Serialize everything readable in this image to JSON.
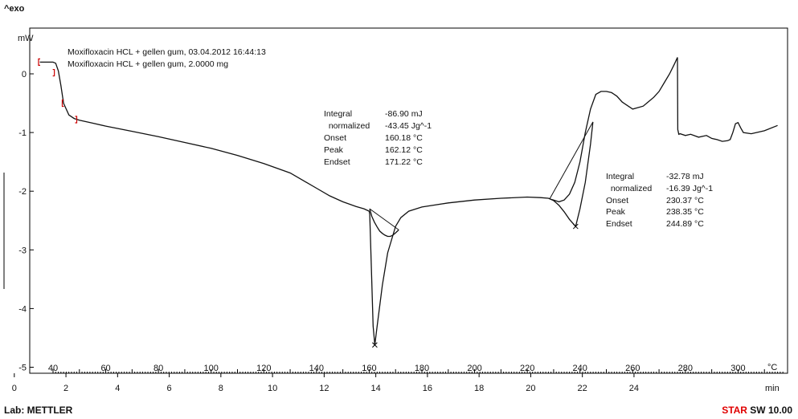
{
  "header": {
    "exo": "^exo"
  },
  "footer": {
    "lab": "Lab: METTLER",
    "star_red": "STAR",
    "star_rest": " SW 10.00"
  },
  "legend": [
    "Moxifloxacin HCL + gellen gum, 03.04.2012 16:44:13",
    "Moxifloxacin HCL + gellen gum, 2.0000 mg"
  ],
  "annotations": [
    {
      "rows": [
        {
          "label": "Integral",
          "value": "-86.90 mJ"
        },
        {
          "label": "  normalized",
          "value": "-43.45 Jg^-1"
        },
        {
          "label": "Onset",
          "value": "160.18 °C"
        },
        {
          "label": "Peak",
          "value": "162.12 °C"
        },
        {
          "label": "Endset",
          "value": "171.22 °C"
        }
      ]
    },
    {
      "rows": [
        {
          "label": "Integral",
          "value": "-32.78 mJ"
        },
        {
          "label": "  normalized",
          "value": "-16.39 Jg^-1"
        },
        {
          "label": "Onset",
          "value": "230.37 °C"
        },
        {
          "label": "Peak",
          "value": "238.35 °C"
        },
        {
          "label": "Endset",
          "value": "244.89 °C"
        }
      ]
    }
  ],
  "chart_data": {
    "type": "line",
    "title": "",
    "ylabel": "mW",
    "ylim": [
      -5,
      0.7
    ],
    "y_ticks": [
      0,
      -1,
      -2,
      -3,
      -4,
      -5
    ],
    "temp_unit": "°C",
    "temp_ticks": [
      40,
      60,
      80,
      100,
      120,
      140,
      160,
      180,
      200,
      220,
      240,
      260,
      280,
      300
    ],
    "time_unit": "min",
    "time_ticks": [
      0,
      2,
      4,
      6,
      8,
      10,
      12,
      14,
      16,
      18,
      20,
      22,
      24
    ],
    "series": [
      {
        "x": [
          35,
          36,
          38,
          40,
          41,
          42,
          43,
          44,
          46,
          48,
          50,
          55,
          60,
          70,
          80,
          90,
          100,
          110,
          120,
          130,
          140,
          145,
          150,
          155,
          158,
          160,
          160.2,
          160.8,
          161.5,
          162.12,
          163,
          165,
          167,
          170,
          172,
          175,
          180,
          190,
          200,
          210,
          220,
          225,
          228,
          229,
          230,
          232,
          234,
          236,
          238,
          240,
          242,
          244,
          246,
          248,
          250,
          252,
          254,
          256,
          260,
          264,
          268,
          270,
          272,
          274,
          276,
          277,
          277.1,
          277.5,
          278,
          280,
          282,
          285,
          288,
          290,
          292,
          294,
          296,
          297,
          298,
          299,
          300,
          301,
          302,
          305,
          310,
          315
        ],
        "y": [
          0.2,
          0.2,
          0.2,
          0.2,
          0.18,
          0.05,
          -0.2,
          -0.5,
          -0.7,
          -0.76,
          -0.79,
          -0.84,
          -0.89,
          -0.98,
          -1.07,
          -1.17,
          -1.27,
          -1.39,
          -1.53,
          -1.69,
          -1.95,
          -2.08,
          -2.18,
          -2.26,
          -2.3,
          -2.34,
          -2.4,
          -3.3,
          -4.3,
          -4.62,
          -4.3,
          -3.6,
          -3.05,
          -2.6,
          -2.45,
          -2.34,
          -2.27,
          -2.2,
          -2.15,
          -2.12,
          -2.1,
          -2.11,
          -2.12,
          -2.14,
          -2.15,
          -2.18,
          -2.15,
          -2.05,
          -1.85,
          -1.5,
          -1.0,
          -0.6,
          -0.35,
          -0.3,
          -0.3,
          -0.32,
          -0.38,
          -0.48,
          -0.6,
          -0.55,
          -0.4,
          -0.3,
          -0.15,
          0.0,
          0.18,
          0.28,
          -0.95,
          -1.03,
          -1.02,
          -1.05,
          -1.03,
          -1.08,
          -1.05,
          -1.1,
          -1.12,
          -1.15,
          -1.14,
          -1.12,
          -1.0,
          -0.85,
          -0.83,
          -0.92,
          -1.0,
          -1.02,
          -0.97,
          -0.88
        ]
      },
      {
        "x": [
          160.18,
          161,
          162,
          163,
          164,
          165,
          166,
          167,
          168,
          169,
          170,
          171.22
        ],
        "y": [
          -2.3,
          -2.43,
          -2.53,
          -2.61,
          -2.68,
          -2.72,
          -2.75,
          -2.77,
          -2.77,
          -2.75,
          -2.71,
          -2.66
        ]
      },
      {
        "x": [
          228.5,
          230,
          232,
          234,
          236,
          238.35,
          240,
          242,
          244,
          244.89
        ],
        "y": [
          -2.13,
          -2.16,
          -2.24,
          -2.35,
          -2.48,
          -2.6,
          -2.3,
          -1.85,
          -1.2,
          -0.82
        ]
      }
    ],
    "baselines": [
      {
        "x": [
          160.18,
          171.22
        ],
        "y": [
          -2.3,
          -2.66
        ]
      },
      {
        "x": [
          228.5,
          244.89
        ],
        "y": [
          -2.13,
          -0.82
        ]
      }
    ],
    "peak_markers": [
      {
        "x": 162.12,
        "y": -4.62
      },
      {
        "x": 238.35,
        "y": -2.6
      }
    ],
    "limit_markers": [
      {
        "x": 34.5,
        "y": 0.2,
        "side": "left"
      },
      {
        "x": 40.5,
        "y": 0.02,
        "side": "right"
      },
      {
        "x": 43.5,
        "y": -0.5,
        "side": "left"
      },
      {
        "x": 49,
        "y": -0.78,
        "side": "right"
      }
    ],
    "colors": {
      "curve": "#111111",
      "limits": "#cc0000",
      "star": "#e00000"
    }
  }
}
